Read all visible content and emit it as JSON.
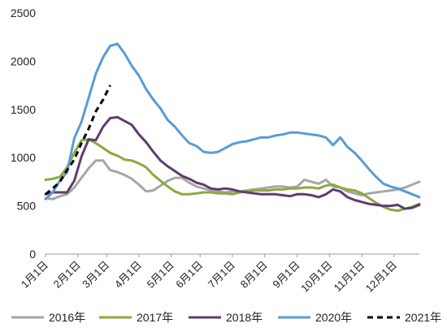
{
  "chart_data": {
    "type": "line",
    "title": "",
    "xlabel": "",
    "ylabel": "",
    "ylim": [
      0,
      2500
    ],
    "yticks": [
      "0",
      "500",
      "1000",
      "1500",
      "2000",
      "2500"
    ],
    "xtick_labels": [
      "1月1日",
      "2月1日",
      "3月1日",
      "4月1日",
      "5月1日",
      "6月1日",
      "7月1日",
      "8月1日",
      "9月1日",
      "10月1日",
      "11月1日",
      "12月1日"
    ],
    "x_unit": "week of year",
    "x_ticks_at_week": [
      1,
      5.5,
      9.5,
      14,
      18.5,
      22.5,
      27,
      31.5,
      36,
      40.5,
      45,
      49.5
    ],
    "grid": false,
    "legend_position": "bottom",
    "series": [
      {
        "name": "2016年",
        "color": "#a6a6a6",
        "dash": false,
        "x": [
          1,
          2,
          3,
          4,
          5,
          6,
          7,
          8,
          9,
          10,
          11,
          12,
          13,
          14,
          15,
          16,
          17,
          18,
          19,
          20,
          21,
          22,
          23,
          24,
          25,
          26,
          27,
          28,
          29,
          30,
          31,
          32,
          33,
          34,
          35,
          36,
          37,
          38,
          39,
          40,
          41,
          42,
          43,
          44,
          45,
          46,
          47,
          48,
          49,
          50,
          51,
          52,
          53
        ],
        "values": [
          580,
          570,
          600,
          620,
          690,
          790,
          890,
          970,
          970,
          870,
          850,
          820,
          780,
          720,
          650,
          660,
          710,
          760,
          790,
          790,
          740,
          700,
          680,
          660,
          650,
          640,
          650,
          650,
          660,
          670,
          680,
          690,
          700,
          700,
          690,
          700,
          770,
          750,
          730,
          770,
          700,
          690,
          650,
          630,
          610,
          630,
          640,
          650,
          660,
          670,
          690,
          720,
          750
        ]
      },
      {
        "name": "2017年",
        "color": "#8aaa3c",
        "dash": false,
        "x": [
          1,
          2,
          3,
          4,
          5,
          6,
          7,
          8,
          9,
          10,
          11,
          12,
          13,
          14,
          15,
          16,
          17,
          18,
          19,
          20,
          21,
          22,
          23,
          24,
          25,
          26,
          27,
          28,
          29,
          30,
          31,
          32,
          33,
          34,
          35,
          36,
          37,
          38,
          39,
          40,
          41,
          42,
          43,
          44,
          45,
          46,
          47,
          48,
          49,
          50,
          51,
          52,
          53
        ],
        "values": [
          770,
          780,
          800,
          900,
          1050,
          1180,
          1190,
          1150,
          1100,
          1050,
          1020,
          980,
          970,
          940,
          900,
          820,
          760,
          700,
          650,
          620,
          620,
          630,
          640,
          640,
          630,
          630,
          620,
          640,
          650,
          660,
          660,
          660,
          670,
          670,
          680,
          680,
          690,
          690,
          680,
          710,
          720,
          690,
          670,
          660,
          630,
          580,
          530,
          490,
          460,
          450,
          470,
          490,
          520
        ]
      },
      {
        "name": "2018年",
        "color": "#5f3c6e",
        "dash": false,
        "x": [
          1,
          2,
          3,
          4,
          5,
          6,
          7,
          8,
          9,
          10,
          11,
          12,
          13,
          14,
          15,
          16,
          17,
          18,
          19,
          20,
          21,
          22,
          23,
          24,
          25,
          26,
          27,
          28,
          29,
          30,
          31,
          32,
          33,
          34,
          35,
          36,
          37,
          38,
          39,
          40,
          41,
          42,
          43,
          44,
          45,
          46,
          47,
          48,
          49,
          50,
          51,
          52,
          53
        ],
        "values": [
          620,
          640,
          640,
          640,
          760,
          1010,
          1190,
          1180,
          1320,
          1410,
          1420,
          1380,
          1340,
          1240,
          1160,
          1060,
          970,
          910,
          860,
          810,
          780,
          740,
          720,
          680,
          670,
          680,
          670,
          650,
          640,
          630,
          620,
          620,
          620,
          610,
          600,
          620,
          620,
          610,
          590,
          620,
          670,
          650,
          590,
          560,
          540,
          520,
          510,
          500,
          500,
          510,
          470,
          480,
          510
        ]
      },
      {
        "name": "2020年",
        "color": "#5b9bd5",
        "dash": false,
        "x": [
          1,
          2,
          3,
          4,
          5,
          6,
          7,
          8,
          9,
          10,
          11,
          12,
          13,
          14,
          15,
          16,
          17,
          18,
          19,
          20,
          21,
          22,
          23,
          24,
          25,
          26,
          27,
          28,
          29,
          30,
          31,
          32,
          33,
          34,
          35,
          36,
          37,
          38,
          39,
          40,
          41,
          42,
          43,
          44,
          45,
          46,
          47,
          48,
          49,
          50,
          51,
          52,
          53
        ],
        "values": [
          570,
          640,
          760,
          850,
          1200,
          1370,
          1620,
          1870,
          2040,
          2160,
          2180,
          2080,
          1950,
          1850,
          1710,
          1600,
          1510,
          1390,
          1320,
          1230,
          1150,
          1120,
          1060,
          1050,
          1060,
          1100,
          1140,
          1160,
          1170,
          1190,
          1210,
          1210,
          1230,
          1240,
          1260,
          1260,
          1250,
          1240,
          1230,
          1210,
          1130,
          1210,
          1110,
          1050,
          970,
          880,
          800,
          730,
          700,
          680,
          650,
          620,
          590
        ]
      },
      {
        "name": "2021年",
        "color": "#000000",
        "dash": true,
        "x": [
          1,
          2,
          3,
          4,
          5,
          6,
          7,
          8,
          9,
          10
        ],
        "values": [
          620,
          680,
          750,
          870,
          980,
          1150,
          1300,
          1480,
          1600,
          1750
        ]
      }
    ]
  }
}
